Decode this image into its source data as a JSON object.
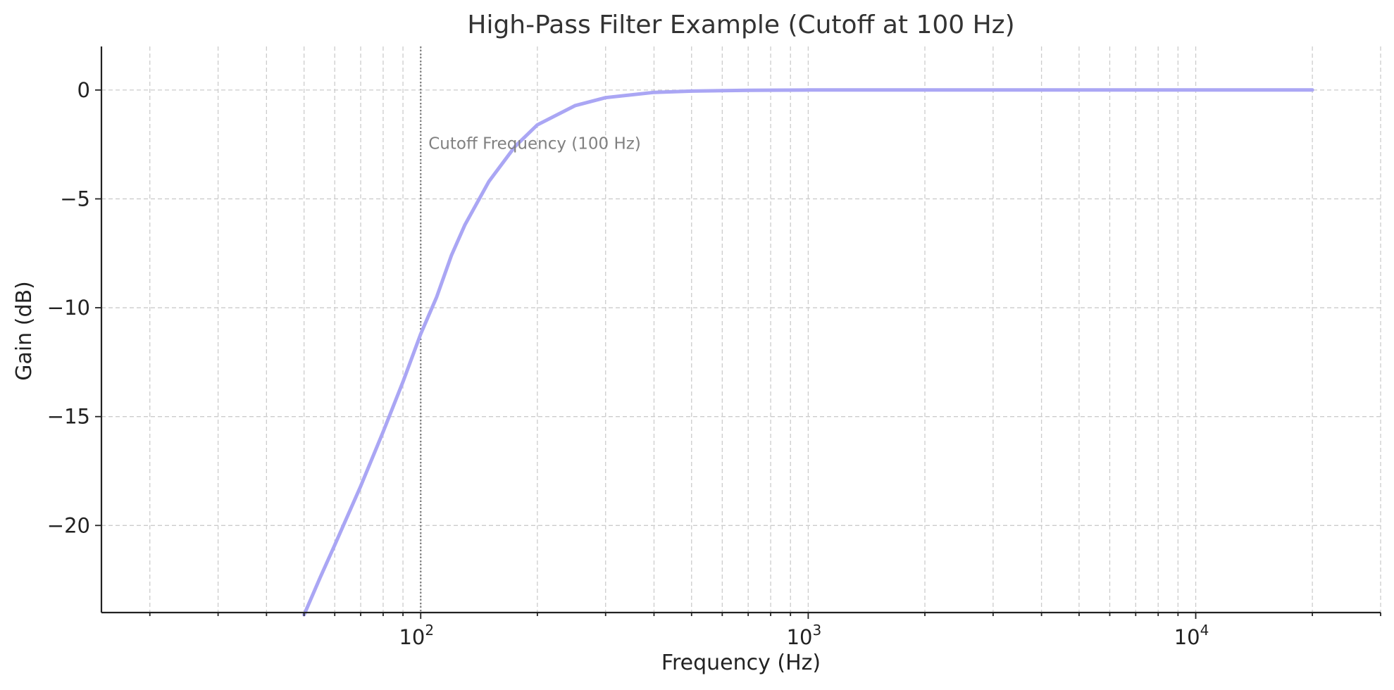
{
  "chart_data": {
    "type": "line",
    "title": "High-Pass Filter Example (Cutoff at 100 Hz)",
    "xlabel": "Frequency (Hz)",
    "ylabel": "Gain (dB)",
    "xscale": "log",
    "xlim": [
      15,
      30000
    ],
    "ylim": [
      -24,
      2
    ],
    "grid": true,
    "x_ticks": [
      {
        "value": 100,
        "base": "10",
        "exp": "2"
      },
      {
        "value": 1000,
        "base": "10",
        "exp": "3"
      },
      {
        "value": 10000,
        "base": "10",
        "exp": "4"
      }
    ],
    "y_ticks": [
      {
        "value": 0,
        "label": "0"
      },
      {
        "value": -5,
        "label": "−5"
      },
      {
        "value": -10,
        "label": "−10"
      },
      {
        "value": -15,
        "label": "−15"
      },
      {
        "value": -20,
        "label": "−20"
      }
    ],
    "series": [
      {
        "color": "#aaa6f4",
        "x": [
          50,
          55,
          60,
          65,
          70,
          80,
          90,
          100,
          110,
          120,
          130,
          150,
          175,
          200,
          250,
          300,
          400,
          500,
          700,
          1000,
          2000,
          5000,
          10000,
          20000
        ],
        "y": [
          -24.1,
          -22.4,
          -20.9,
          -19.5,
          -18.2,
          -15.7,
          -13.4,
          -11.2,
          -9.5,
          -7.6,
          -6.2,
          -4.2,
          -2.6,
          -1.6,
          -0.72,
          -0.35,
          -0.11,
          -0.05,
          -0.01,
          0,
          0,
          0,
          0,
          0
        ]
      }
    ],
    "annotations": [
      {
        "text": "Cutoff Frequency (100 Hz)",
        "x": 100,
        "y": -2.7,
        "color": "#808080",
        "vline_x": 100
      }
    ]
  }
}
